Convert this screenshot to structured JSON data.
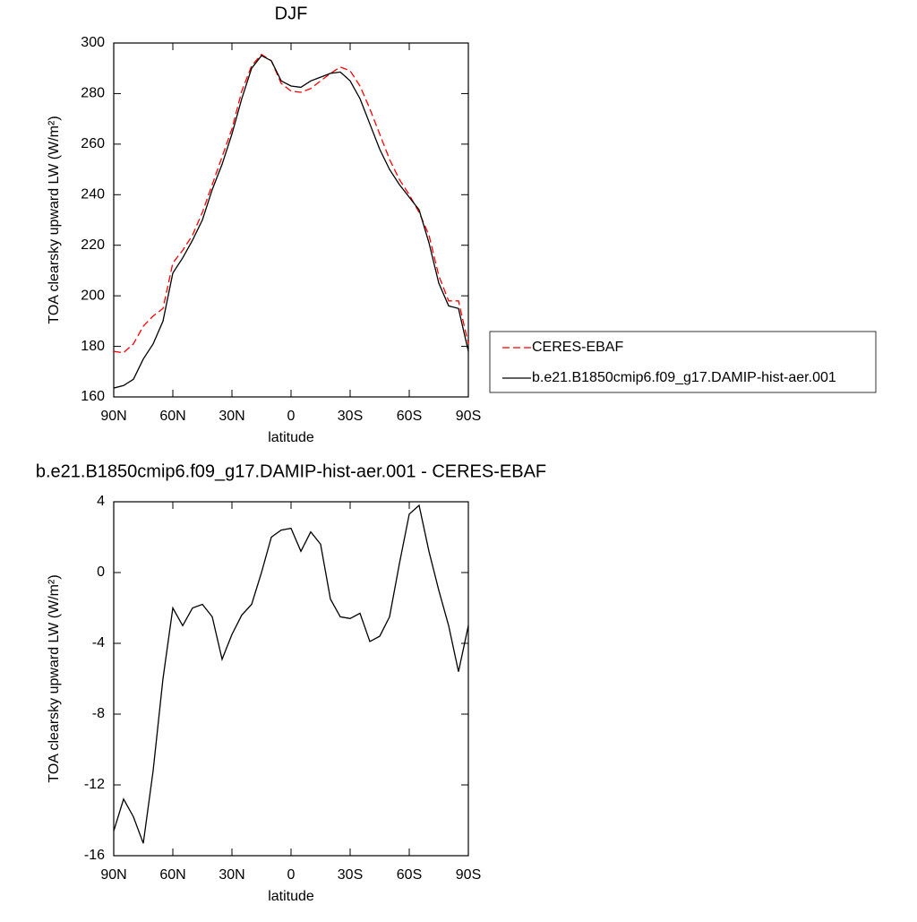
{
  "chart_data": [
    {
      "type": "line",
      "title": "DJF",
      "xlabel": "latitude",
      "ylabel": "TOA clearsky upward LW (W/m²)",
      "x": [
        90,
        85,
        80,
        75,
        70,
        65,
        60,
        55,
        50,
        45,
        40,
        35,
        30,
        25,
        20,
        15,
        10,
        5,
        0,
        -5,
        -10,
        -15,
        -20,
        -25,
        -30,
        -35,
        -40,
        -45,
        -50,
        -55,
        -60,
        -65,
        -70,
        -75,
        -80,
        -85,
        -90
      ],
      "xlim": [
        90,
        -90
      ],
      "xticks": [
        {
          "value": 90,
          "label": "90N"
        },
        {
          "value": 60,
          "label": "60N"
        },
        {
          "value": 30,
          "label": "30N"
        },
        0,
        {
          "value": -30,
          "label": "30S"
        },
        {
          "value": -60,
          "label": "60S"
        },
        {
          "value": -90,
          "label": "90S"
        }
      ],
      "ylim": [
        160,
        300
      ],
      "yticks": [
        160,
        180,
        200,
        220,
        240,
        260,
        280,
        300
      ],
      "legend": "right",
      "series": [
        {
          "name": "CERES-EBAF",
          "color": "#ff0000",
          "style": "dashed",
          "values": [
            178,
            177.5,
            181,
            188,
            192,
            195,
            213,
            218,
            224,
            233,
            244,
            255,
            266,
            281,
            291,
            295.5,
            293,
            284,
            281,
            280.5,
            282,
            285,
            288,
            290.5,
            289,
            283,
            274,
            264,
            254,
            246,
            240,
            233,
            224,
            208,
            198,
            198,
            181
          ]
        },
        {
          "name": "b.e21.B1850cmip6.f09_g17.DAMIP-hist-aer.001",
          "color": "#000000",
          "style": "solid",
          "values": [
            163.5,
            164.5,
            167,
            175,
            181,
            190,
            209,
            215,
            222,
            230,
            242,
            252,
            264,
            278,
            290,
            295,
            293,
            285,
            283,
            282.5,
            285,
            286.5,
            288,
            288.5,
            285,
            278,
            268,
            258,
            250,
            244,
            239,
            234,
            221,
            205,
            196,
            195,
            178
          ]
        }
      ]
    },
    {
      "type": "line",
      "title": "b.e21.B1850cmip6.f09_g17.DAMIP-hist-aer.001 - CERES-EBAF",
      "xlabel": "latitude",
      "ylabel": "TOA clearsky upward LW (W/m²)",
      "x": [
        90,
        85,
        80,
        75,
        70,
        65,
        60,
        55,
        50,
        45,
        40,
        35,
        30,
        25,
        20,
        15,
        10,
        5,
        0,
        -5,
        -10,
        -15,
        -20,
        -25,
        -30,
        -35,
        -40,
        -45,
        -50,
        -55,
        -60,
        -65,
        -70,
        -75,
        -80,
        -85,
        -90
      ],
      "xlim": [
        90,
        -90
      ],
      "xticks": [
        {
          "value": 90,
          "label": "90N"
        },
        {
          "value": 60,
          "label": "60N"
        },
        {
          "value": 30,
          "label": "30N"
        },
        0,
        {
          "value": -30,
          "label": "30S"
        },
        {
          "value": -60,
          "label": "60S"
        },
        {
          "value": -90,
          "label": "90S"
        }
      ],
      "ylim": [
        -16,
        4
      ],
      "yticks": [
        -16,
        -12,
        -8,
        -4,
        0,
        4
      ],
      "series": [
        {
          "color": "#000000",
          "style": "solid",
          "values": [
            -14.6,
            -12.8,
            -13.8,
            -15.3,
            -11.2,
            -6,
            -2,
            -3,
            -2,
            -1.8,
            -2.5,
            -4.9,
            -3.5,
            -2.4,
            -1.8,
            0,
            2,
            2.4,
            2.5,
            1.2,
            2.3,
            1.6,
            -1.5,
            -2.5,
            -2.6,
            -2.3,
            -3.9,
            -3.6,
            -2.5,
            0.5,
            3.3,
            3.8,
            1.2,
            -1,
            -3,
            -5.6,
            -3
          ]
        }
      ]
    }
  ]
}
